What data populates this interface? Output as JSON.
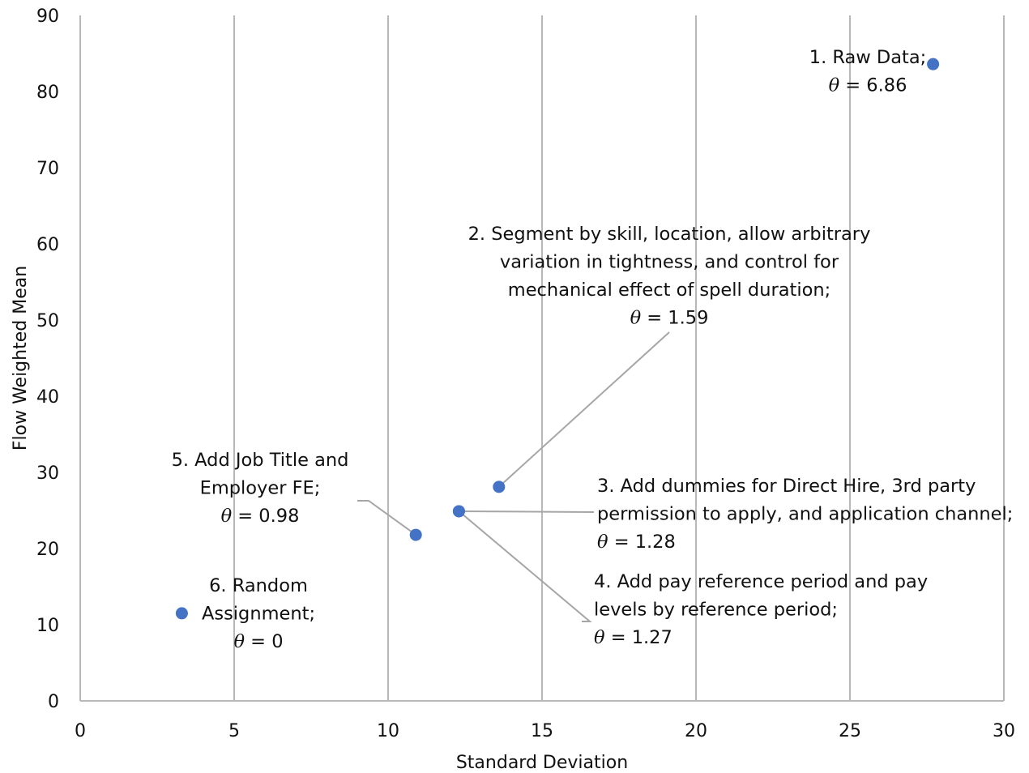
{
  "chart_data": {
    "type": "scatter",
    "xlabel": "Standard Deviation",
    "ylabel": "Flow Weighted Mean",
    "xlim": [
      0,
      30
    ],
    "ylim": [
      0,
      90
    ],
    "x_ticks": [
      0,
      5,
      10,
      15,
      20,
      25,
      30
    ],
    "y_ticks": [
      0,
      10,
      20,
      30,
      40,
      50,
      60,
      70,
      80,
      90
    ],
    "grid": "vertical",
    "marker_color": "#4472C4",
    "points": [
      {
        "id": "1",
        "x": 27.7,
        "y": 83.6
      },
      {
        "id": "2",
        "x": 13.6,
        "y": 28.1
      },
      {
        "id": "3",
        "x": 12.3,
        "y": 24.9
      },
      {
        "id": "4",
        "x": 12.3,
        "y": 24.9
      },
      {
        "id": "5",
        "x": 10.9,
        "y": 21.8
      },
      {
        "id": "6",
        "x": 3.3,
        "y": 11.5
      }
    ],
    "annotations": [
      {
        "point": "1",
        "lines": [
          {
            "text": "1. Raw Data;"
          },
          {
            "theta": true,
            "text": " = 6.86"
          }
        ],
        "align": "middle",
        "leader": false
      },
      {
        "point": "2",
        "lines": [
          {
            "text": "2. Segment by skill, location, allow arbitrary"
          },
          {
            "text": "variation in tightness, and control for"
          },
          {
            "text": "mechanical effect of spell duration;"
          },
          {
            "theta": true,
            "text": " = 1.59"
          }
        ],
        "align": "middle",
        "leader": true
      },
      {
        "point": "3",
        "lines": [
          {
            "text": "3. Add dummies for Direct Hire, 3rd party"
          },
          {
            "text": "permission to apply, and application channel;"
          },
          {
            "theta": true,
            "text": " = 1.28"
          }
        ],
        "align": "start",
        "leader": true
      },
      {
        "point": "4",
        "lines": [
          {
            "text": "4. Add pay reference period and pay"
          },
          {
            "text": "levels by reference period;"
          },
          {
            "theta": true,
            "text": " = 1.27"
          }
        ],
        "align": "start",
        "leader": true
      },
      {
        "point": "5",
        "lines": [
          {
            "text": "5. Add Job Title and"
          },
          {
            "text": "Employer FE;"
          },
          {
            "theta": true,
            "text": " = 0.98"
          }
        ],
        "align": "middle",
        "leader": true
      },
      {
        "point": "6",
        "lines": [
          {
            "text": "6. Random"
          },
          {
            "text": "Assignment;"
          },
          {
            "theta": true,
            "text": " = 0"
          }
        ],
        "align": "middle",
        "leader": true
      }
    ],
    "theta_symbol": "θ"
  }
}
